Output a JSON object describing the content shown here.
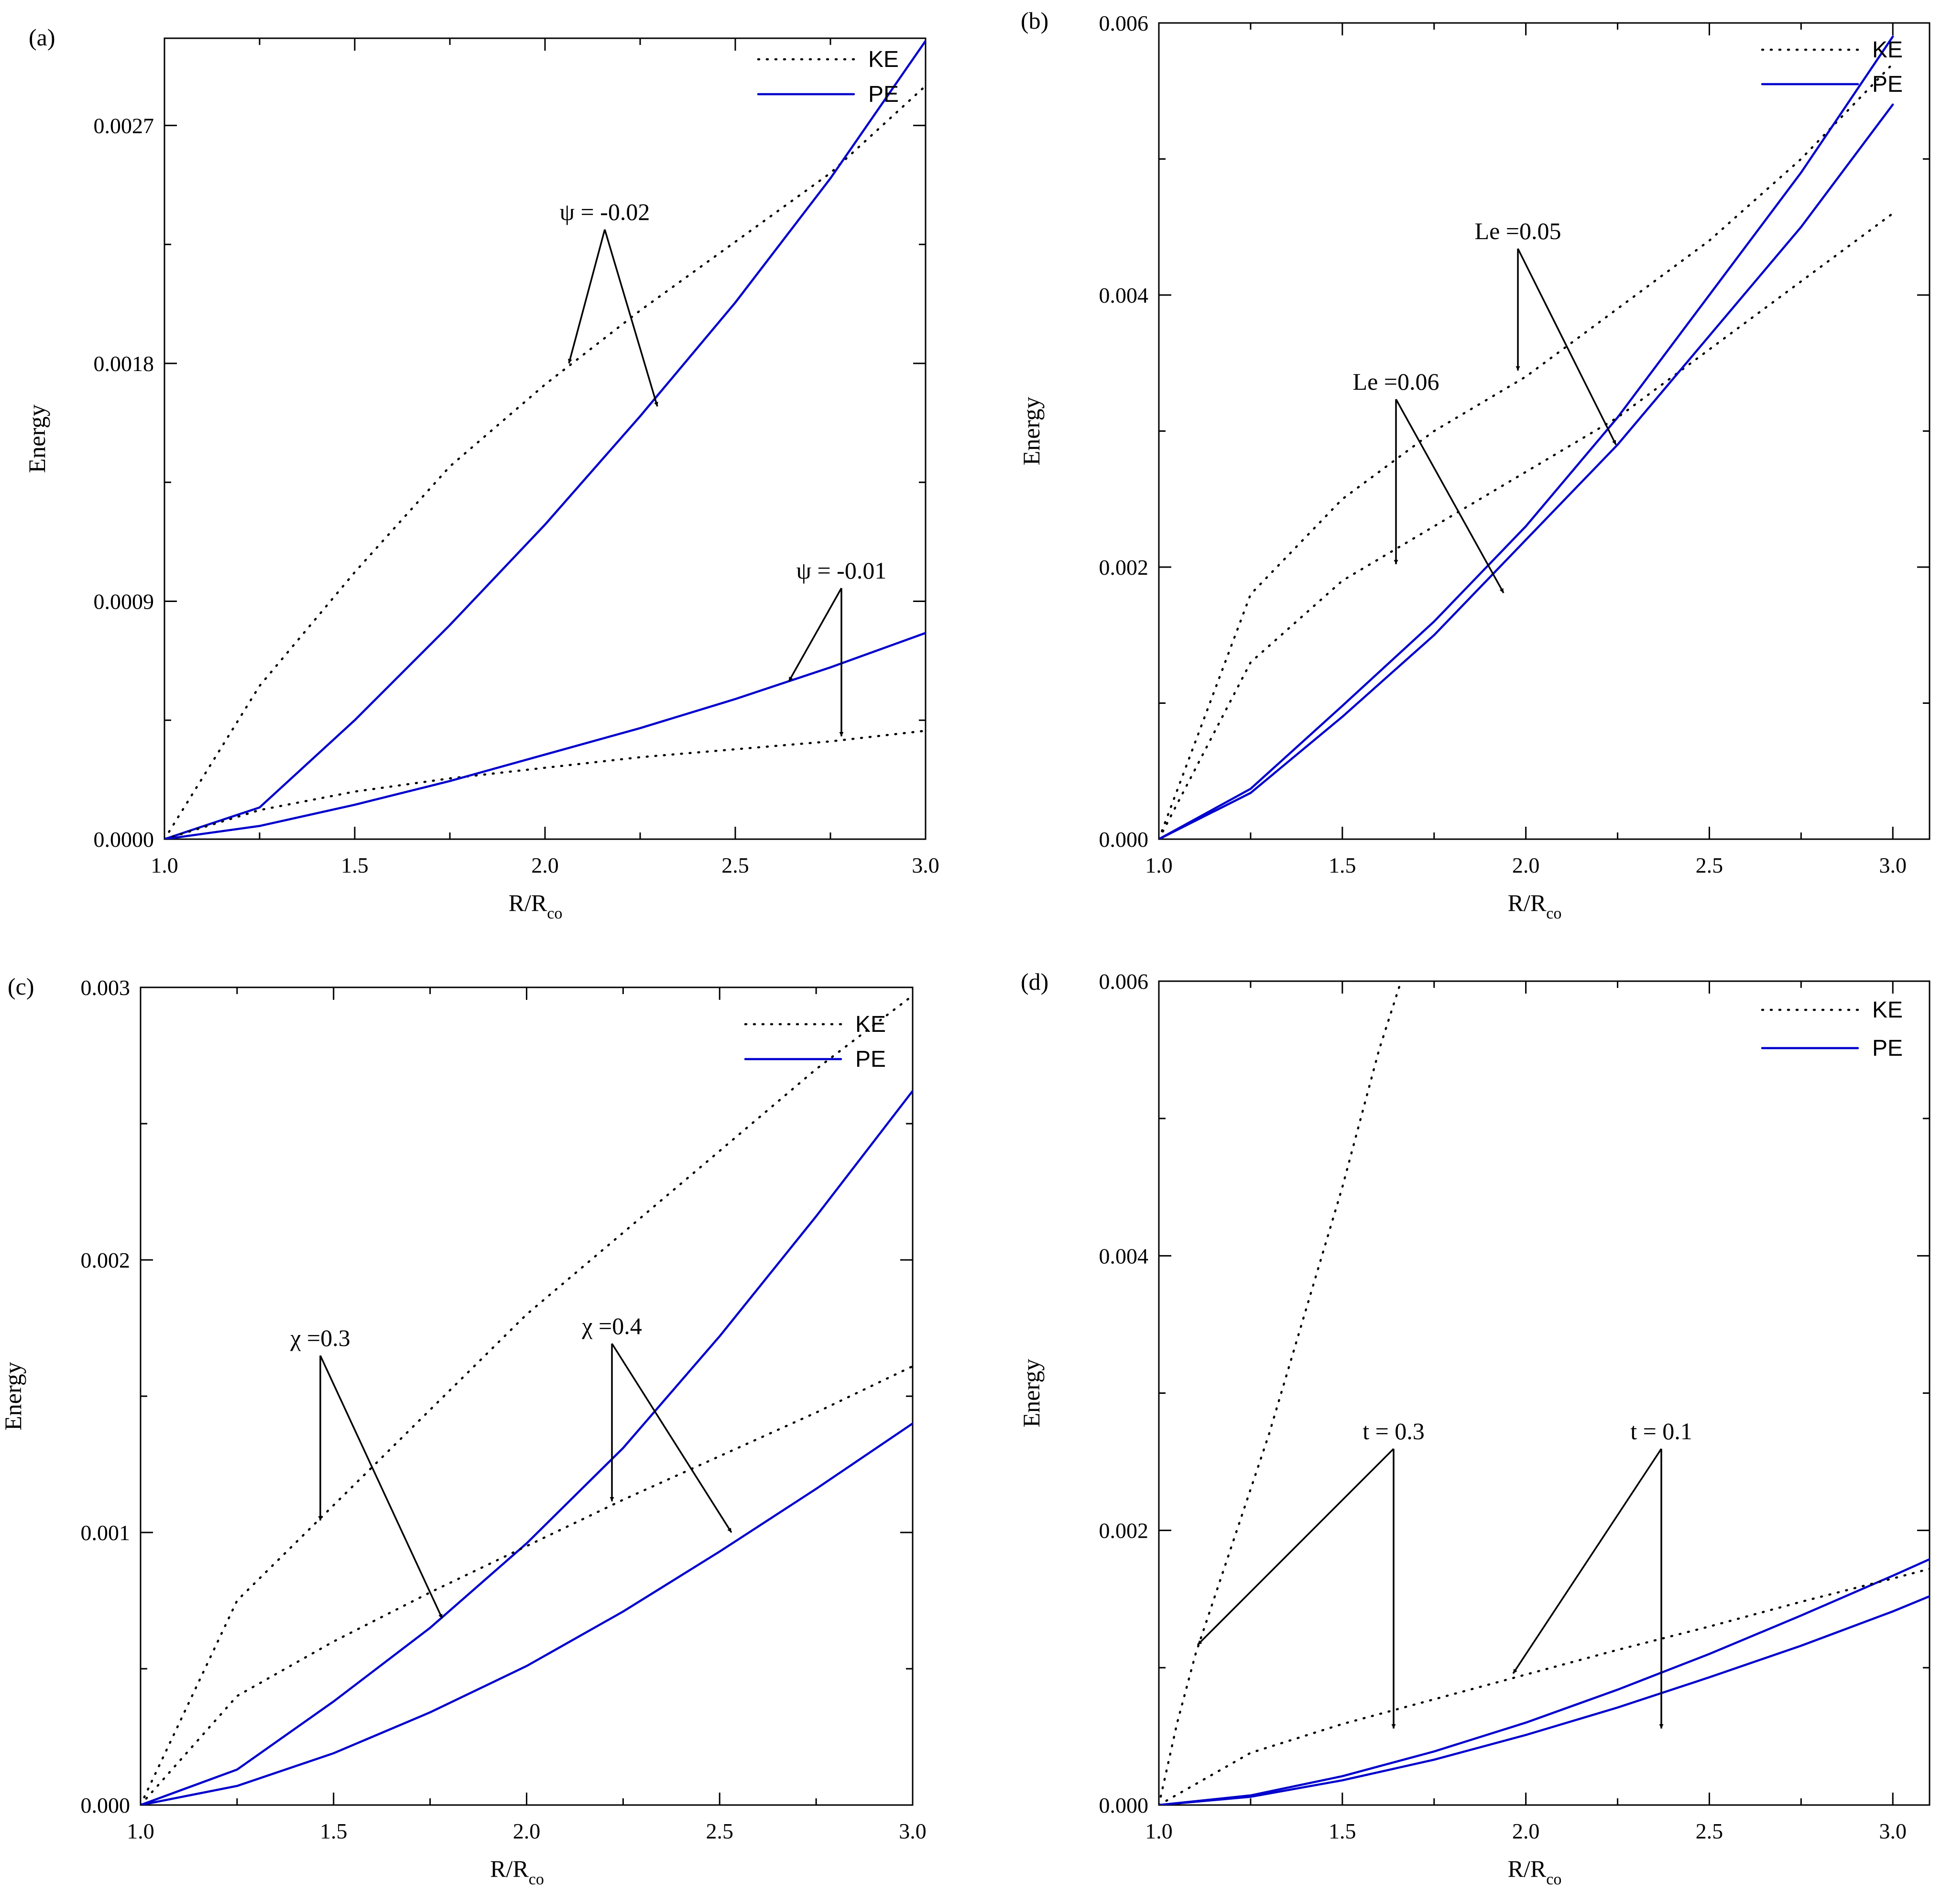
{
  "figure": {
    "colors": {
      "ke": "#000000",
      "pe": "#0000cc"
    }
  },
  "chart_data": [
    {
      "panel_label": "(a)",
      "type": "line",
      "xlabel_main": "R/R",
      "xlabel_sub": "co",
      "ylabel": "Energy",
      "xlim": [
        1.0,
        3.0
      ],
      "ylim": [
        0.0,
        0.00303
      ],
      "x_ticks": [
        "1.0",
        "1.5",
        "2.0",
        "2.5",
        "3.0"
      ],
      "y_ticks": [
        "0.0000",
        "0.0009",
        "0.0018",
        "0.0027"
      ],
      "legend": {
        "position": "top-right",
        "entries": [
          "KE",
          "PE"
        ]
      },
      "series": [
        {
          "name": "KE",
          "param": "ψ = -0.02",
          "x": [
            1.0,
            1.25,
            1.5,
            1.75,
            2.0,
            2.25,
            2.5,
            2.75,
            3.0
          ],
          "values": [
            0.0,
            0.00058,
            0.00101,
            0.00141,
            0.00172,
            0.002,
            0.00226,
            0.00252,
            0.00285
          ]
        },
        {
          "name": "PE",
          "param": "ψ = -0.02",
          "x": [
            1.0,
            1.25,
            1.5,
            1.75,
            2.0,
            2.25,
            2.5,
            2.75,
            3.0
          ],
          "values": [
            0.0,
            0.00012,
            0.00045,
            0.00081,
            0.00119,
            0.0016,
            0.00203,
            0.0025,
            0.00302
          ]
        },
        {
          "name": "KE",
          "param": "ψ = -0.01",
          "x": [
            1.0,
            1.25,
            1.5,
            1.75,
            2.0,
            2.25,
            2.5,
            2.75,
            3.0
          ],
          "values": [
            0.0,
            0.00011,
            0.00018,
            0.00023,
            0.00027,
            0.00031,
            0.00034,
            0.00037,
            0.00041
          ]
        },
        {
          "name": "PE",
          "param": "ψ = -0.01",
          "x": [
            1.0,
            1.25,
            1.5,
            1.75,
            2.0,
            2.25,
            2.5,
            2.75,
            3.0
          ],
          "values": [
            0.0,
            5e-05,
            0.00013,
            0.00022,
            0.00032,
            0.00042,
            0.00053,
            0.00065,
            0.00078
          ]
        }
      ],
      "annotations": [
        {
          "text": "ψ = -0.02",
          "targets": [
            "KE",
            "PE"
          ]
        },
        {
          "text": "ψ = -0.01",
          "targets": [
            "PE",
            "KE"
          ]
        }
      ]
    },
    {
      "panel_label": "(b)",
      "type": "line",
      "xlabel_main": "R/R",
      "xlabel_sub": "co",
      "ylabel": "Energy",
      "xlim": [
        1.0,
        3.1
      ],
      "ylim": [
        0.0,
        0.006
      ],
      "x_ticks": [
        "1.0",
        "1.5",
        "2.0",
        "2.5",
        "3.0"
      ],
      "y_ticks": [
        "0.000",
        "0.002",
        "0.004",
        "0.006"
      ],
      "legend": {
        "position": "top-right",
        "entries": [
          "KE",
          "PE"
        ]
      },
      "series": [
        {
          "name": "KE",
          "param": "Le =0.05",
          "x": [
            1.0,
            1.25,
            1.5,
            1.75,
            2.0,
            2.25,
            2.5,
            2.75,
            3.0
          ],
          "values": [
            0.0,
            0.0018,
            0.0025,
            0.003,
            0.0034,
            0.0039,
            0.0044,
            0.005,
            0.0057
          ]
        },
        {
          "name": "PE",
          "param": "Le =0.05",
          "x": [
            1.0,
            1.25,
            1.5,
            1.75,
            2.0,
            2.25,
            2.5,
            2.75,
            3.0
          ],
          "values": [
            0.0,
            0.00037,
            0.00098,
            0.0016,
            0.0023,
            0.0031,
            0.004,
            0.0049,
            0.0059
          ]
        },
        {
          "name": "KE",
          "param": "Le =0.06",
          "x": [
            1.0,
            1.25,
            1.5,
            1.75,
            2.0,
            2.25,
            2.5,
            2.75,
            3.0
          ],
          "values": [
            0.0,
            0.0013,
            0.0019,
            0.0023,
            0.0027,
            0.0031,
            0.0036,
            0.0041,
            0.0046
          ]
        },
        {
          "name": "PE",
          "param": "Le =0.06",
          "x": [
            1.0,
            1.25,
            1.5,
            1.75,
            2.0,
            2.25,
            2.5,
            2.75,
            3.0
          ],
          "values": [
            0.0,
            0.00034,
            0.0009,
            0.0015,
            0.0022,
            0.0029,
            0.0037,
            0.0045,
            0.0054
          ]
        }
      ],
      "annotations": [
        {
          "text": "Le =0.05",
          "targets": [
            "KE",
            "PE"
          ]
        },
        {
          "text": "Le =0.06",
          "targets": [
            "KE",
            "PE"
          ]
        }
      ]
    },
    {
      "panel_label": "(c)",
      "type": "line",
      "xlabel_main": "R/R",
      "xlabel_sub": "co",
      "ylabel": "Energy",
      "xlim": [
        1.0,
        3.0
      ],
      "ylim": [
        0.0,
        0.003
      ],
      "x_ticks": [
        "1.0",
        "1.5",
        "2.0",
        "2.5",
        "3.0"
      ],
      "y_ticks": [
        "0.000",
        "0.001",
        "0.002",
        "0.003"
      ],
      "legend": {
        "position": "top-right",
        "entries": [
          "KE",
          "PE"
        ]
      },
      "series": [
        {
          "name": "KE",
          "param": "χ =0.3",
          "x": [
            1.0,
            1.25,
            1.5,
            1.75,
            2.0,
            2.25,
            2.5,
            2.75,
            3.0
          ],
          "values": [
            0.0,
            0.00075,
            0.0011,
            0.00145,
            0.0018,
            0.0021,
            0.0024,
            0.0027,
            0.00297
          ]
        },
        {
          "name": "PE",
          "param": "χ =0.3",
          "x": [
            1.0,
            1.25,
            1.5,
            1.75,
            2.0,
            2.25,
            2.5,
            2.75,
            3.0
          ],
          "values": [
            0.0,
            0.00013,
            0.00038,
            0.00065,
            0.00096,
            0.00131,
            0.00172,
            0.00216,
            0.00262
          ]
        },
        {
          "name": "KE",
          "param": "χ =0.4",
          "x": [
            1.0,
            1.25,
            1.5,
            1.75,
            2.0,
            2.25,
            2.5,
            2.75,
            3.0
          ],
          "values": [
            0.0,
            0.0004,
            0.0006,
            0.00078,
            0.00095,
            0.00112,
            0.00128,
            0.00144,
            0.00161
          ]
        },
        {
          "name": "PE",
          "param": "χ =0.4",
          "x": [
            1.0,
            1.25,
            1.5,
            1.75,
            2.0,
            2.25,
            2.5,
            2.75,
            3.0
          ],
          "values": [
            0.0,
            7e-05,
            0.00019,
            0.00034,
            0.00051,
            0.00071,
            0.00093,
            0.00116,
            0.0014
          ]
        }
      ],
      "annotations": [
        {
          "text": "χ =0.3",
          "targets": [
            "KE",
            "PE"
          ]
        },
        {
          "text": "χ =0.4",
          "targets": [
            "KE",
            "PE"
          ]
        }
      ]
    },
    {
      "panel_label": "(d)",
      "type": "line",
      "xlabel_main": "R/R",
      "xlabel_sub": "co",
      "ylabel": "Energy",
      "xlim": [
        1.0,
        3.1
      ],
      "ylim": [
        0.0,
        0.006
      ],
      "x_ticks": [
        "1.0",
        "1.5",
        "2.0",
        "2.5",
        "3.0"
      ],
      "y_ticks": [
        "0.000",
        "0.002",
        "0.004",
        "0.006"
      ],
      "legend": {
        "position": "top-right",
        "entries": [
          "KE",
          "PE"
        ]
      },
      "series": [
        {
          "name": "KE",
          "param": "t = 0.3",
          "x": [
            1.0,
            1.05,
            1.1,
            1.2,
            1.3,
            1.4,
            1.5,
            1.6,
            1.66
          ],
          "values": [
            0.0,
            0.0006,
            0.0011,
            0.0019,
            0.0027,
            0.0036,
            0.0045,
            0.0055,
            0.006
          ]
        },
        {
          "name": "PE",
          "param": "t = 0.3",
          "x": [
            1.0,
            1.25,
            1.5,
            1.75,
            2.0,
            2.25,
            2.5,
            2.75,
            3.0,
            3.1
          ],
          "values": [
            0.0,
            7e-05,
            0.00021,
            0.00039,
            0.0006,
            0.00084,
            0.0011,
            0.00138,
            0.00167,
            0.00179
          ]
        },
        {
          "name": "KE",
          "param": "t = 0.1",
          "x": [
            1.0,
            1.25,
            1.5,
            1.75,
            2.0,
            2.25,
            2.5,
            2.75,
            3.0,
            3.1
          ],
          "values": [
            0.0,
            0.00038,
            0.00059,
            0.00077,
            0.00095,
            0.00113,
            0.0013,
            0.00148,
            0.00165,
            0.00172
          ]
        },
        {
          "name": "PE",
          "param": "t = 0.1",
          "x": [
            1.0,
            1.25,
            1.5,
            1.75,
            2.0,
            2.25,
            2.5,
            2.75,
            3.0,
            3.1
          ],
          "values": [
            0.0,
            6e-05,
            0.00018,
            0.00033,
            0.00051,
            0.00071,
            0.00093,
            0.00116,
            0.00141,
            0.00152
          ]
        }
      ],
      "annotations": [
        {
          "text": "t = 0.3",
          "targets": [
            "KE",
            "PE"
          ]
        },
        {
          "text": "t = 0.1",
          "targets": [
            "KE",
            "PE"
          ]
        }
      ]
    }
  ]
}
